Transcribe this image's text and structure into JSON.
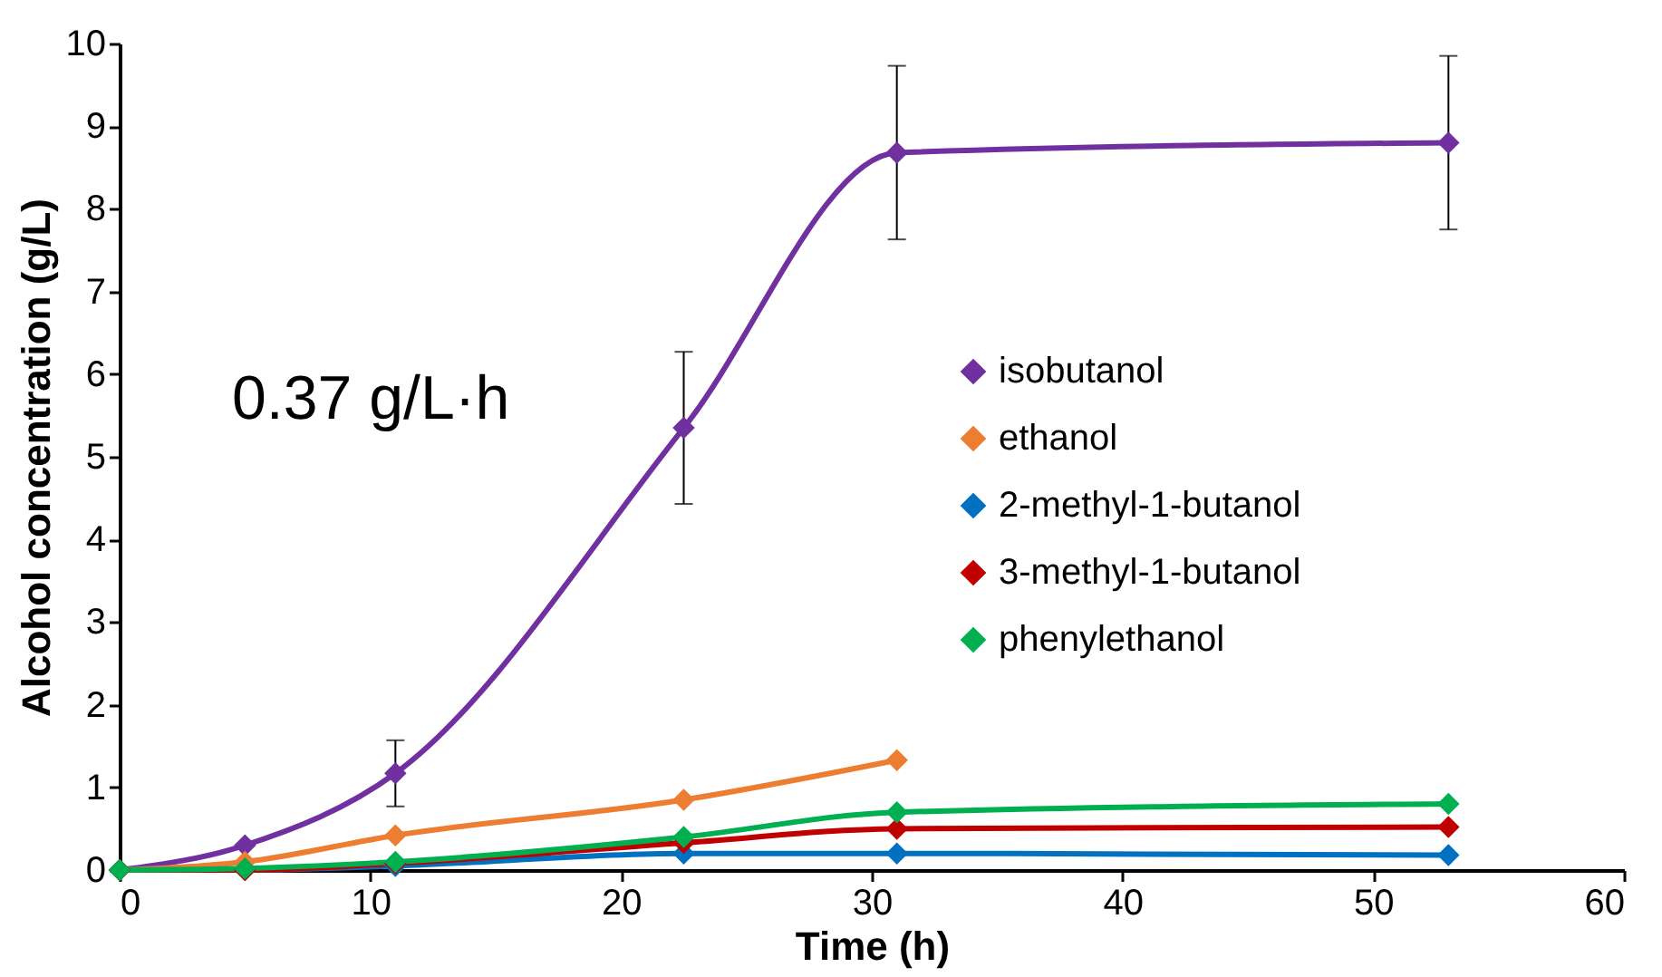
{
  "chart_data": {
    "type": "line",
    "xlabel": "Time (h)",
    "ylabel": "Alcohol concentration (g/L)",
    "x": [
      0,
      5,
      11,
      22.5,
      31,
      53
    ],
    "series": [
      {
        "name": "isobutanol",
        "color": "#7030a0",
        "values": [
          0,
          0.3,
          1.17,
          5.35,
          8.68,
          8.8
        ],
        "errors": [
          null,
          null,
          0.4,
          0.92,
          1.05,
          1.05
        ]
      },
      {
        "name": "ethanol",
        "color": "#ed7d31",
        "values": [
          0,
          0.1,
          0.42,
          0.85,
          1.33,
          null
        ]
      },
      {
        "name": "2-methyl-1-butanol",
        "color": "#0070c0",
        "values": [
          0,
          0,
          0.05,
          0.2,
          0.2,
          0.18
        ]
      },
      {
        "name": "3-methyl-1-butanol",
        "color": "#c00000",
        "values": [
          0,
          0,
          0.08,
          0.33,
          0.5,
          0.52
        ]
      },
      {
        "name": "phenylethanol",
        "color": "#00b050",
        "values": [
          0,
          0.02,
          0.1,
          0.4,
          0.7,
          0.8
        ]
      }
    ],
    "xlim": [
      0,
      60
    ],
    "xticks": [
      0,
      10,
      20,
      30,
      40,
      50,
      60
    ],
    "ylim": [
      0,
      10
    ],
    "yticks": [
      0,
      1,
      2,
      3,
      4,
      5,
      6,
      7,
      8,
      9,
      10
    ],
    "annotations": [
      "0.37 g/L·h"
    ],
    "legend": "right",
    "marker": "diamond",
    "grid": false
  }
}
